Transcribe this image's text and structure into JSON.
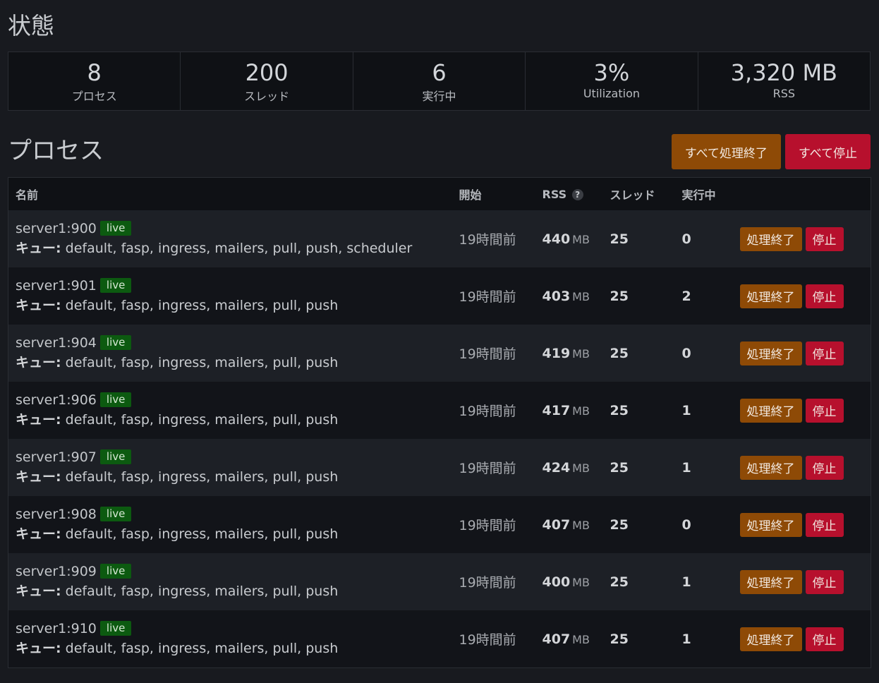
{
  "status": {
    "heading": "状態",
    "stats": [
      {
        "value": "8",
        "label": "プロセス"
      },
      {
        "value": "200",
        "label": "スレッド"
      },
      {
        "value": "6",
        "label": "実行中"
      },
      {
        "value": "3%",
        "label": "Utilization"
      },
      {
        "value": "3,320 MB",
        "label": "RSS"
      }
    ]
  },
  "processes": {
    "heading": "プロセス",
    "quiet_all_label": "すべて処理終了",
    "stop_all_label": "すべて停止",
    "columns": {
      "name": "名前",
      "started": "開始",
      "rss": "RSS",
      "rss_help": "?",
      "threads": "スレッド",
      "busy": "実行中"
    },
    "queue_label": "キュー:",
    "rss_unit": "MB",
    "quiet_label": "処理終了",
    "stop_label": "停止",
    "rows": [
      {
        "name": "server1:900",
        "badge": "live",
        "queues": "default, fasp, ingress, mailers, pull, push, scheduler",
        "started": "19時間前",
        "rss": "440",
        "threads": "25",
        "busy": "0"
      },
      {
        "name": "server1:901",
        "badge": "live",
        "queues": "default, fasp, ingress, mailers, pull, push",
        "started": "19時間前",
        "rss": "403",
        "threads": "25",
        "busy": "2"
      },
      {
        "name": "server1:904",
        "badge": "live",
        "queues": "default, fasp, ingress, mailers, pull, push",
        "started": "19時間前",
        "rss": "419",
        "threads": "25",
        "busy": "0"
      },
      {
        "name": "server1:906",
        "badge": "live",
        "queues": "default, fasp, ingress, mailers, pull, push",
        "started": "19時間前",
        "rss": "417",
        "threads": "25",
        "busy": "1"
      },
      {
        "name": "server1:907",
        "badge": "live",
        "queues": "default, fasp, ingress, mailers, pull, push",
        "started": "19時間前",
        "rss": "424",
        "threads": "25",
        "busy": "1"
      },
      {
        "name": "server1:908",
        "badge": "live",
        "queues": "default, fasp, ingress, mailers, pull, push",
        "started": "19時間前",
        "rss": "407",
        "threads": "25",
        "busy": "0"
      },
      {
        "name": "server1:909",
        "badge": "live",
        "queues": "default, fasp, ingress, mailers, pull, push",
        "started": "19時間前",
        "rss": "400",
        "threads": "25",
        "busy": "1"
      },
      {
        "name": "server1:910",
        "badge": "live",
        "queues": "default, fasp, ingress, mailers, pull, push",
        "started": "19時間前",
        "rss": "407",
        "threads": "25",
        "busy": "1"
      }
    ]
  }
}
